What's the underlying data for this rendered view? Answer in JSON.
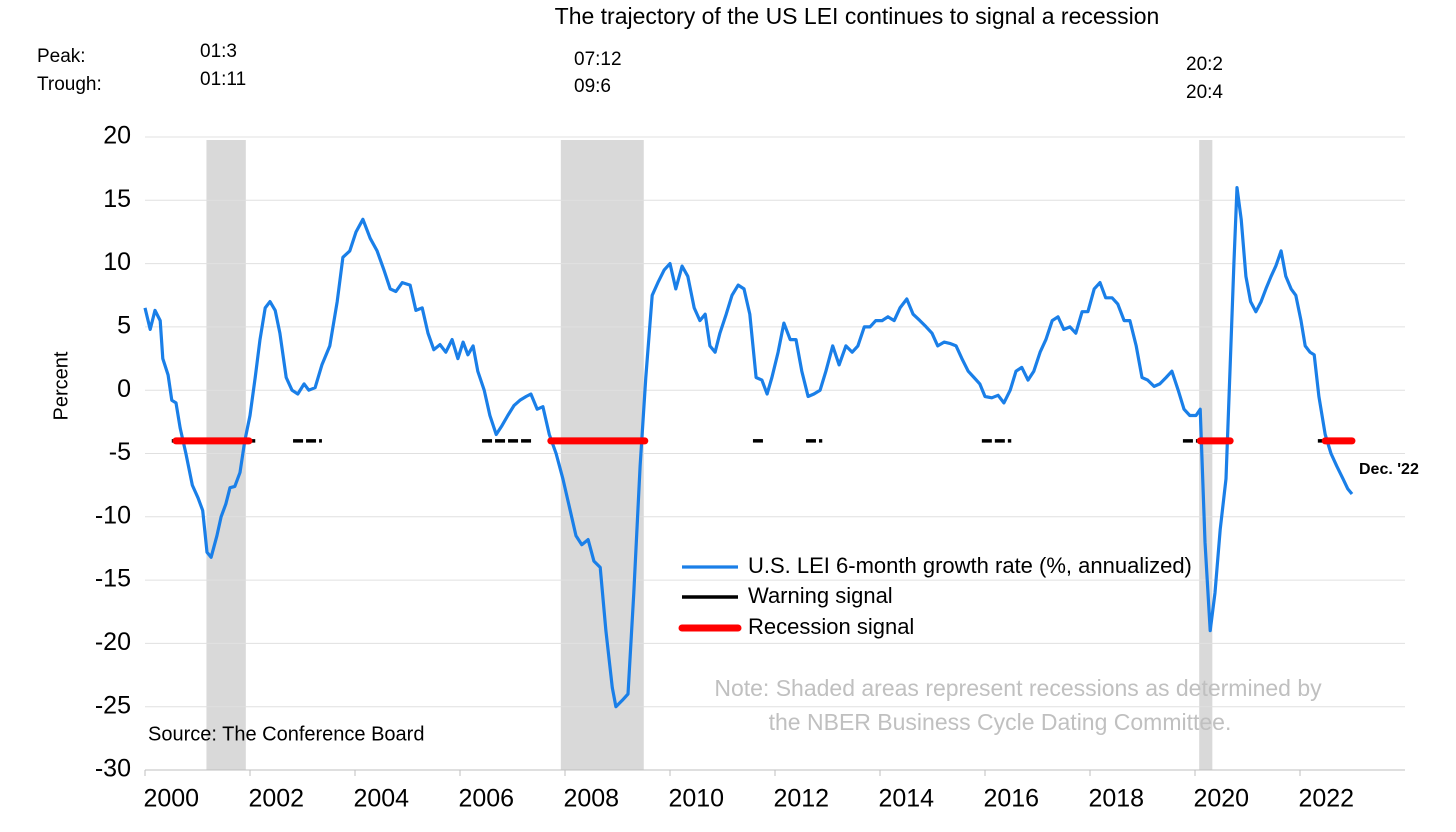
{
  "chart_data": {
    "type": "line",
    "title": "The trajectory of the US LEI continues to signal a recession",
    "y_label": "Percent",
    "peak_label": "Peak:",
    "trough_label": "Trough:",
    "source": "Source: The Conference Board",
    "note": [
      "Note: Shaded areas represent recessions as determined by",
      "the NBER Business Cycle Dating Committee."
    ],
    "end_label": "Dec. '22",
    "xlim": [
      2000,
      2024
    ],
    "xticks": [
      2000,
      2002,
      2004,
      2006,
      2008,
      2010,
      2012,
      2014,
      2016,
      2018,
      2020,
      2022
    ],
    "ylim": [
      -30,
      20
    ],
    "yticks": [
      -30,
      -25,
      -20,
      -15,
      -10,
      -5,
      0,
      5,
      10,
      15,
      20
    ],
    "grid": true,
    "recession_color": "#d9d9d9",
    "recessions": [
      {
        "start": 2001.17,
        "end": 2001.92,
        "peak": "01:3",
        "trough": "01:11"
      },
      {
        "start": 2007.92,
        "end": 2009.5,
        "peak": "07:12",
        "trough": "09:6"
      },
      {
        "start": 2020.08,
        "end": 2020.33,
        "peak": "20:2",
        "trough": "20:4"
      }
    ],
    "x": [
      2000.0,
      2000.1,
      2000.19,
      2000.29,
      2000.34,
      2000.44,
      2000.51,
      2000.59,
      2000.67,
      2000.78,
      2000.9,
      2001.01,
      2001.1,
      2001.18,
      2001.26,
      2001.37,
      2001.45,
      2001.54,
      2001.62,
      2001.71,
      2001.81,
      2001.9,
      2002.0,
      2002.1,
      2002.19,
      2002.29,
      2002.38,
      2002.48,
      2002.57,
      2002.69,
      2002.8,
      2002.91,
      2003.03,
      2003.12,
      2003.24,
      2003.37,
      2003.52,
      2003.66,
      2003.77,
      2003.9,
      2004.02,
      2004.15,
      2004.29,
      2004.42,
      2004.55,
      2004.67,
      2004.78,
      2004.9,
      2005.05,
      2005.16,
      2005.28,
      2005.39,
      2005.5,
      2005.62,
      2005.73,
      2005.85,
      2005.96,
      2006.06,
      2006.15,
      2006.25,
      2006.34,
      2006.46,
      2006.57,
      2006.69,
      2006.8,
      2006.91,
      2007.03,
      2007.14,
      2007.26,
      2007.35,
      2007.47,
      2007.58,
      2007.7,
      2007.83,
      2007.96,
      2008.1,
      2008.21,
      2008.32,
      2008.44,
      2008.55,
      2008.67,
      2008.78,
      2008.9,
      2008.97,
      2009.09,
      2009.2,
      2009.31,
      2009.43,
      2009.54,
      2009.66,
      2009.77,
      2009.89,
      2010.0,
      2010.11,
      2010.23,
      2010.34,
      2010.46,
      2010.57,
      2010.67,
      2010.76,
      2010.86,
      2010.95,
      2011.07,
      2011.18,
      2011.3,
      2011.41,
      2011.52,
      2011.64,
      2011.75,
      2011.85,
      2011.94,
      2012.06,
      2012.17,
      2012.29,
      2012.4,
      2012.51,
      2012.63,
      2012.74,
      2012.86,
      2012.97,
      2013.1,
      2013.22,
      2013.35,
      2013.47,
      2013.58,
      2013.7,
      2013.81,
      2013.92,
      2014.04,
      2014.15,
      2014.27,
      2014.38,
      2014.51,
      2014.63,
      2014.76,
      2014.88,
      2014.99,
      2015.1,
      2015.22,
      2015.33,
      2015.45,
      2015.56,
      2015.68,
      2015.79,
      2015.9,
      2016.0,
      2016.13,
      2016.25,
      2016.36,
      2016.48,
      2016.59,
      2016.7,
      2016.82,
      2016.93,
      2017.05,
      2017.16,
      2017.28,
      2017.39,
      2017.5,
      2017.62,
      2017.73,
      2017.85,
      2017.96,
      2018.08,
      2018.19,
      2018.3,
      2018.42,
      2018.53,
      2018.65,
      2018.76,
      2018.88,
      2018.99,
      2019.1,
      2019.22,
      2019.33,
      2019.45,
      2019.56,
      2019.68,
      2019.79,
      2019.9,
      2020.02,
      2020.1,
      2020.19,
      2020.29,
      2020.38,
      2020.48,
      2020.59,
      2020.67,
      2020.74,
      2020.8,
      2020.88,
      2020.97,
      2021.06,
      2021.16,
      2021.26,
      2021.35,
      2021.45,
      2021.54,
      2021.64,
      2021.73,
      2021.83,
      2021.92,
      2022.02,
      2022.1,
      2022.19,
      2022.27,
      2022.36,
      2022.48,
      2022.59,
      2022.7,
      2022.82,
      2022.91,
      2022.99
    ],
    "series": [
      {
        "name": "U.S. LEI 6-month growth rate (%, annualized)",
        "color": "#1a7fe8",
        "values": [
          6.5,
          4.8,
          6.3,
          5.5,
          2.5,
          1.2,
          -0.8,
          -1,
          -3,
          -5,
          -7.5,
          -8.5,
          -9.5,
          -12.8,
          -13.2,
          -11.5,
          -10,
          -9,
          -7.7,
          -7.6,
          -6.5,
          -4,
          -2,
          1,
          4,
          6.5,
          7,
          6.3,
          4.5,
          1,
          0,
          -0.3,
          0.5,
          0,
          0.2,
          2,
          3.5,
          7,
          10.5,
          11,
          12.5,
          13.5,
          12,
          11,
          9.5,
          8,
          7.8,
          8.5,
          8.3,
          6.3,
          6.5,
          4.5,
          3.2,
          3.6,
          3,
          4,
          2.5,
          3.8,
          2.8,
          3.5,
          1.5,
          0,
          -2,
          -3.5,
          -2.8,
          -2,
          -1.2,
          -0.8,
          -0.5,
          -0.3,
          -1.5,
          -1.3,
          -3.5,
          -5,
          -7,
          -9.5,
          -11.5,
          -12.2,
          -11.8,
          -13.5,
          -14,
          -19,
          -23.5,
          -25,
          -24.5,
          -24,
          -16,
          -6,
          1,
          7.5,
          8.5,
          9.5,
          10,
          8,
          9.8,
          9,
          6.5,
          5.5,
          6,
          3.5,
          3,
          4.5,
          6,
          7.5,
          8.3,
          8,
          6,
          1,
          0.8,
          -0.3,
          1,
          3,
          5.3,
          4,
          4,
          1.5,
          -0.5,
          -0.3,
          0,
          1.5,
          3.5,
          2,
          3.5,
          3,
          3.5,
          5,
          5,
          5.5,
          5.5,
          5.8,
          5.5,
          6.5,
          7.2,
          6,
          5.5,
          5,
          4.5,
          3.5,
          3.8,
          3.7,
          3.5,
          2.5,
          1.5,
          1,
          0.5,
          -0.5,
          -0.6,
          -0.4,
          -1,
          0,
          1.5,
          1.8,
          0.8,
          1.5,
          3,
          4,
          5.5,
          5.8,
          4.8,
          5,
          4.5,
          6.2,
          6.2,
          8,
          8.5,
          7.3,
          7.3,
          6.8,
          5.5,
          5.5,
          3.5,
          1,
          0.8,
          0.3,
          0.5,
          1,
          1.5,
          0,
          -1.5,
          -2,
          -2,
          -1.5,
          -12,
          -19,
          -16,
          -11,
          -7,
          2,
          10,
          16,
          13.5,
          9,
          7,
          6.2,
          7,
          8,
          9,
          9.8,
          11,
          9,
          8,
          7.5,
          5.5,
          3.5,
          3,
          2.8,
          -0.5,
          -3.5,
          -5,
          -6,
          -7,
          -7.8,
          -8.2
        ]
      },
      {
        "name": "Warning signal",
        "color": "#000000",
        "value": -4,
        "spans": [
          [
            2000.51,
            2002.1
          ],
          [
            2002.82,
            2003.37
          ],
          [
            2006.42,
            2007.37
          ],
          [
            2007.73,
            2009.52
          ],
          [
            2011.58,
            2011.81
          ],
          [
            2012.59,
            2012.9
          ],
          [
            2015.94,
            2016.5
          ],
          [
            2019.77,
            2020.7
          ],
          [
            2022.34,
            2022.99
          ]
        ]
      },
      {
        "name": "Recession signal",
        "color": "#ff0000",
        "value": -4,
        "spans": [
          [
            2000.59,
            2001.98
          ],
          [
            2007.73,
            2009.52
          ],
          [
            2020.1,
            2020.67
          ],
          [
            2022.48,
            2022.99
          ]
        ]
      }
    ]
  }
}
